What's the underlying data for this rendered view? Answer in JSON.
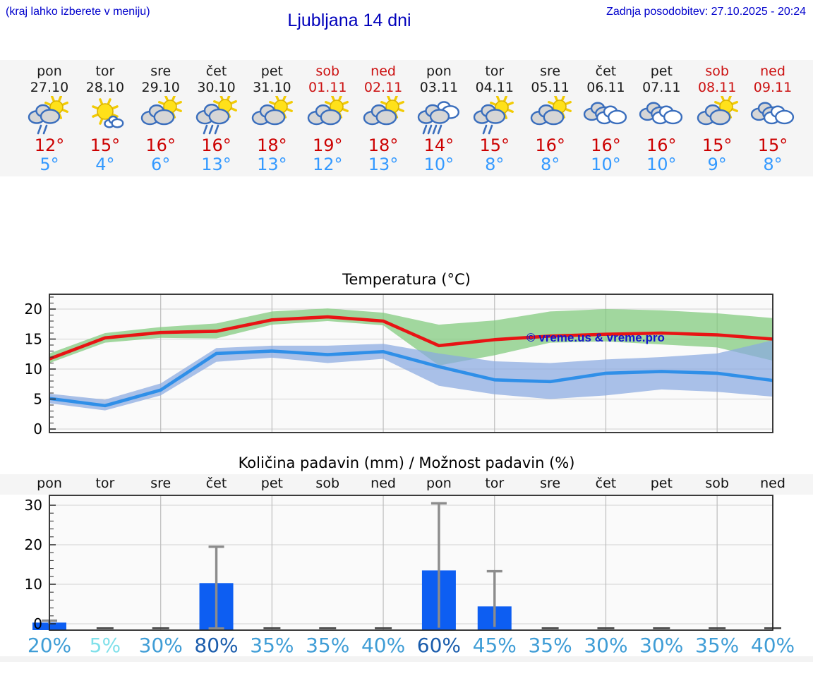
{
  "header": {
    "hint": "(kraj lahko izberete v meniju)",
    "title": "Ljubljana 14 dni",
    "updated": "Zadnja posodobitev: 27.10.2025 - 20:24"
  },
  "colors": {
    "header_text": "#0000cc",
    "weekend_text": "#cc1111",
    "high_temp": "#cc0000",
    "low_temp": "#3399ff",
    "max_line": "#e81414",
    "min_line": "#2f8fe8",
    "max_band": "#7ec97a",
    "min_band": "#89a9e0",
    "bar": "#0d5ef2",
    "error_bar": "#8c8c8c",
    "strip_bg": "#f5f5f5"
  },
  "forecast": {
    "days": [
      {
        "name": "pon",
        "date": "27.10",
        "weekend": false,
        "icon": "sun-cloud-rain2",
        "high": "12°",
        "low": "5°"
      },
      {
        "name": "tor",
        "date": "28.10",
        "weekend": false,
        "icon": "sun-small-cloud",
        "high": "15°",
        "low": "4°"
      },
      {
        "name": "sre",
        "date": "29.10",
        "weekend": false,
        "icon": "cloud-sun",
        "high": "16°",
        "low": "6°"
      },
      {
        "name": "čet",
        "date": "30.10",
        "weekend": false,
        "icon": "sun-cloud-rain3",
        "high": "16°",
        "low": "13°"
      },
      {
        "name": "pet",
        "date": "31.10",
        "weekend": false,
        "icon": "cloud-sun",
        "high": "18°",
        "low": "13°"
      },
      {
        "name": "sob",
        "date": "01.11",
        "weekend": true,
        "icon": "cloud-sun",
        "high": "19°",
        "low": "12°"
      },
      {
        "name": "ned",
        "date": "02.11",
        "weekend": true,
        "icon": "cloud-sun",
        "high": "18°",
        "low": "13°"
      },
      {
        "name": "pon",
        "date": "03.11",
        "weekend": false,
        "icon": "clouds-rain4",
        "high": "14°",
        "low": "10°"
      },
      {
        "name": "tor",
        "date": "04.11",
        "weekend": false,
        "icon": "sun-cloud-rain2",
        "high": "15°",
        "low": "8°"
      },
      {
        "name": "sre",
        "date": "05.11",
        "weekend": false,
        "icon": "cloud-sun",
        "high": "16°",
        "low": "8°"
      },
      {
        "name": "čet",
        "date": "06.11",
        "weekend": false,
        "icon": "clouds",
        "high": "16°",
        "low": "10°"
      },
      {
        "name": "pet",
        "date": "07.11",
        "weekend": false,
        "icon": "clouds",
        "high": "16°",
        "low": "10°"
      },
      {
        "name": "sob",
        "date": "08.11",
        "weekend": true,
        "icon": "cloud-sun",
        "high": "15°",
        "low": "9°"
      },
      {
        "name": "ned",
        "date": "09.11",
        "weekend": true,
        "icon": "clouds",
        "high": "15°",
        "low": "8°"
      }
    ]
  },
  "chart_data": [
    {
      "type": "line",
      "title": "Temperatura (°C)",
      "watermark": "© vreme.us & vreme.pro",
      "categories": [
        "27.10",
        "28.10",
        "29.10",
        "30.10",
        "31.10",
        "01.11",
        "02.11",
        "03.11",
        "04.11",
        "05.11",
        "06.11",
        "07.11",
        "08.11",
        "09.11"
      ],
      "series": [
        {
          "name": "max",
          "color": "#e81414",
          "values": [
            11.7,
            15.2,
            16.1,
            16.3,
            18.2,
            18.7,
            18.0,
            13.9,
            14.9,
            15.5,
            15.8,
            16.0,
            15.7,
            15.0
          ]
        },
        {
          "name": "min",
          "color": "#2f8fe8",
          "values": [
            5.1,
            3.9,
            6.5,
            12.6,
            13.0,
            12.4,
            12.9,
            10.4,
            8.2,
            7.9,
            9.3,
            9.6,
            9.3,
            8.1
          ]
        }
      ],
      "bands": [
        {
          "name": "max-range",
          "color": "#7ec97a",
          "upper": [
            12.6,
            16.0,
            17.0,
            17.6,
            19.6,
            20.1,
            19.4,
            17.4,
            18.1,
            19.6,
            20.0,
            19.8,
            19.3,
            18.5
          ],
          "lower": [
            11.0,
            14.4,
            15.2,
            15.1,
            17.4,
            18.0,
            17.3,
            10.6,
            12.3,
            14.4,
            14.6,
            14.1,
            13.6,
            11.4
          ]
        },
        {
          "name": "min-range",
          "color": "#89a9e0",
          "upper": [
            5.9,
            4.9,
            7.6,
            13.5,
            13.9,
            13.9,
            14.2,
            12.6,
            11.3,
            11.0,
            11.6,
            12.0,
            12.6,
            14.8
          ],
          "lower": [
            4.3,
            3.1,
            5.6,
            11.2,
            11.9,
            11.0,
            11.7,
            7.2,
            5.8,
            5.0,
            5.6,
            6.6,
            6.2,
            5.4
          ]
        }
      ],
      "ylim": [
        -0.6,
        22.5
      ],
      "yticks": [
        0,
        5,
        10,
        15,
        20
      ],
      "grid": true,
      "legend": "none"
    },
    {
      "type": "bar",
      "title": "Količina padavin (mm) / Možnost padavin (%)",
      "categories": [
        "pon",
        "tor",
        "sre",
        "čet",
        "pet",
        "sob",
        "ned",
        "pon",
        "tor",
        "sre",
        "čet",
        "pet",
        "sob",
        "ned"
      ],
      "values": [
        0.3,
        0,
        0,
        10.3,
        0,
        0,
        0,
        13.5,
        4.4,
        0,
        0,
        0,
        0,
        0
      ],
      "error_high": [
        0.8,
        0,
        0,
        19.5,
        0,
        0,
        0,
        30.5,
        13.3,
        0,
        0,
        0,
        0,
        0
      ],
      "error_low": [
        0,
        0,
        0,
        -1.2,
        0,
        0,
        0,
        -1.0,
        -0.8,
        0,
        0,
        0,
        0,
        0
      ],
      "probabilities": [
        {
          "label": "20%",
          "color": "#3f9dd6"
        },
        {
          "label": "5%",
          "color": "#80e0ea"
        },
        {
          "label": "30%",
          "color": "#3f9dd6"
        },
        {
          "label": "80%",
          "color": "#1a5cac"
        },
        {
          "label": "35%",
          "color": "#3f9dd6"
        },
        {
          "label": "35%",
          "color": "#3f9dd6"
        },
        {
          "label": "40%",
          "color": "#3f9dd6"
        },
        {
          "label": "60%",
          "color": "#1a5cac"
        },
        {
          "label": "45%",
          "color": "#3f9dd6"
        },
        {
          "label": "35%",
          "color": "#3f9dd6"
        },
        {
          "label": "30%",
          "color": "#3f9dd6"
        },
        {
          "label": "30%",
          "color": "#3f9dd6"
        },
        {
          "label": "35%",
          "color": "#3f9dd6"
        },
        {
          "label": "40%",
          "color": "#3f9dd6"
        }
      ],
      "ylim": [
        -1.6,
        32.5
      ],
      "yticks": [
        0,
        10,
        20,
        30
      ],
      "grid": true,
      "legend": "none"
    }
  ]
}
